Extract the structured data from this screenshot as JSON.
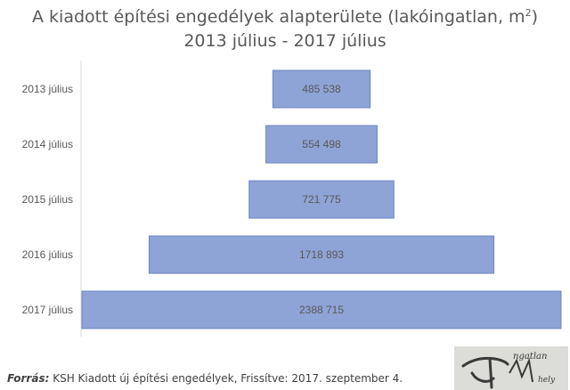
{
  "header": {
    "title_main": "A kiadott építési engedélyek alapterülete (lakóingatlan, m",
    "title_sup": "2",
    "title_close": ")",
    "subtitle": "2013 július - 2017 július"
  },
  "chart_data": {
    "type": "bar",
    "orientation": "horizontal-centered",
    "title": "A kiadott építési engedélyek alapterülete (lakóingatlan, m2)",
    "subtitle": "2013 július - 2017 július",
    "categories": [
      "2013 július",
      "2014 július",
      "2015 július",
      "2016 július",
      "2017 július"
    ],
    "values": [
      485538,
      554498,
      721775,
      1718893,
      2388715
    ],
    "value_labels": [
      "485 538",
      "554 498",
      "721 775",
      "1718 893",
      "2388 715"
    ],
    "bar_color": "#8ea3d6",
    "bar_border_color": "#6f86c2",
    "label_color": "#595959",
    "grid": false
  },
  "footer": {
    "source_label": "Forrás:",
    "source_text": " KSH Kiadott új építési engedélyek, Frissítve: 2017. szeptember 4."
  },
  "logo": {
    "text_top": "ngatlan",
    "text_bottom": "hely"
  }
}
